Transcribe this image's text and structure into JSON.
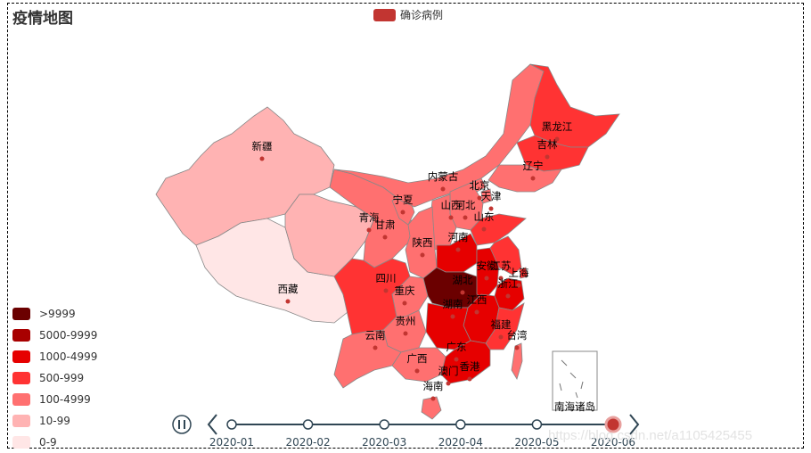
{
  "title": "疫情地图",
  "legend": {
    "label": "确诊病例",
    "color": "#c23531"
  },
  "visual_map": [
    {
      "label": ">9999",
      "color": "#6b0000"
    },
    {
      "label": "5000-9999",
      "color": "#a80000"
    },
    {
      "label": "1000-4999",
      "color": "#e60000"
    },
    {
      "label": "500-999",
      "color": "#ff3333"
    },
    {
      "label": "100-4999",
      "color": "#ff7070"
    },
    {
      "label": "10-99",
      "color": "#ffb3b3"
    },
    {
      "label": "0-9",
      "color": "#ffe6e6"
    }
  ],
  "timeline": {
    "labels": [
      "2020-01",
      "2020-02",
      "2020-03",
      "2020-04",
      "2020-05",
      "2020-06"
    ],
    "current_index": 5
  },
  "inset_label": "南海诸岛",
  "watermark": "https://blog.csdn.net/a1105425455",
  "chart_data": {
    "type": "map",
    "series_name": "确诊病例",
    "regions": [
      {
        "name": "新疆"
      },
      {
        "name": "西藏"
      },
      {
        "name": "青海"
      },
      {
        "name": "甘肃"
      },
      {
        "name": "宁夏"
      },
      {
        "name": "内蒙古"
      },
      {
        "name": "黑龙江"
      },
      {
        "name": "吉林"
      },
      {
        "name": "辽宁"
      },
      {
        "name": "北京"
      },
      {
        "name": "天津"
      },
      {
        "name": "河北"
      },
      {
        "name": "山西"
      },
      {
        "name": "山东"
      },
      {
        "name": "陕西"
      },
      {
        "name": "河南"
      },
      {
        "name": "四川"
      },
      {
        "name": "重庆"
      },
      {
        "name": "湖北"
      },
      {
        "name": "安徽"
      },
      {
        "name": "江苏"
      },
      {
        "name": "上海"
      },
      {
        "name": "浙江"
      },
      {
        "name": "江西"
      },
      {
        "name": "湖南"
      },
      {
        "name": "贵州"
      },
      {
        "name": "云南"
      },
      {
        "name": "广西"
      },
      {
        "name": "广东"
      },
      {
        "name": "福建"
      },
      {
        "name": "台湾"
      },
      {
        "name": "香港"
      },
      {
        "name": "澳门"
      },
      {
        "name": "海南"
      }
    ]
  }
}
